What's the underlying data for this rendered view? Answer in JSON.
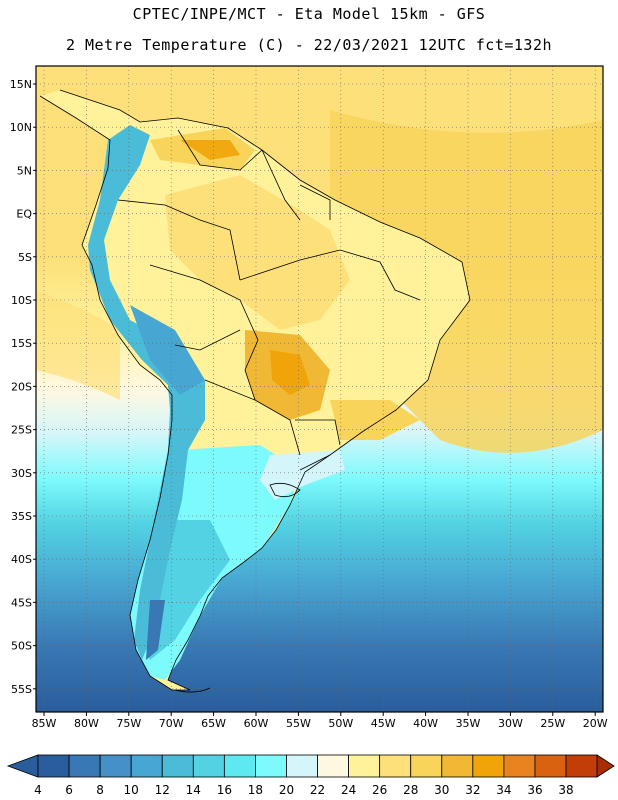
{
  "header": {
    "line1": "CPTEC/INPE/MCT -  Eta Model 15km - GFS",
    "line2": "2 Metre Temperature (C) - 22/03/2021 12UTC fct=132h"
  },
  "map": {
    "lat_labels": [
      "15N",
      "10N",
      "5N",
      "EQ",
      "5S",
      "10S",
      "15S",
      "20S",
      "25S",
      "30S",
      "35S",
      "40S",
      "45S",
      "50S",
      "55S"
    ],
    "lon_labels": [
      "85W",
      "80W",
      "75W",
      "70W",
      "65W",
      "60W",
      "55W",
      "50W",
      "45W",
      "40W",
      "35W",
      "30W",
      "25W",
      "20W"
    ]
  },
  "colorbar": {
    "labels": [
      "4",
      "6",
      "8",
      "10",
      "12",
      "14",
      "16",
      "18",
      "20",
      "22",
      "24",
      "26",
      "28",
      "30",
      "32",
      "34",
      "36",
      "38"
    ],
    "colors": [
      "#2a5d9c",
      "#3878b4",
      "#4590c6",
      "#48a6d2",
      "#4bbcd8",
      "#52d2e2",
      "#5ee8f0",
      "#7cfafc",
      "#d4f6fa",
      "#fff8e0",
      "#fff29a",
      "#fde07a",
      "#f8d45a",
      "#f0b834",
      "#f0a40a",
      "#e88420",
      "#d86210",
      "#c23e06",
      "#a82c04"
    ]
  }
}
